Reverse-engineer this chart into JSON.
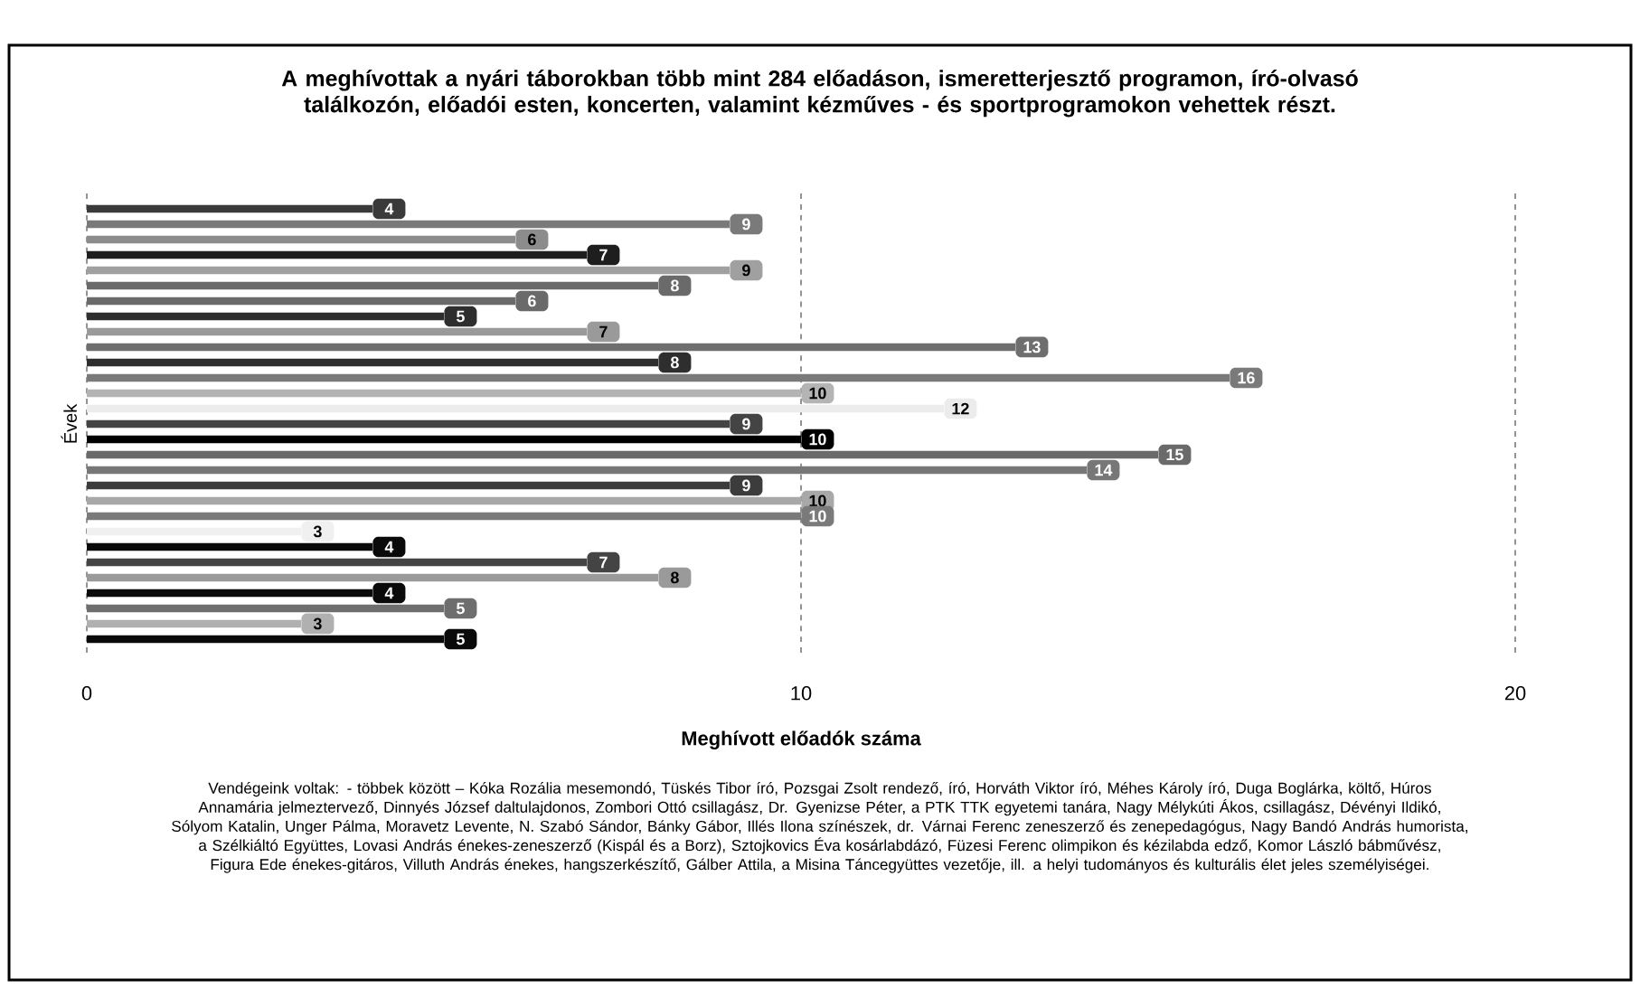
{
  "chart_data": {
    "type": "bar",
    "orientation": "horizontal",
    "title": "A meghívottak a nyári táborokban több mint 284 előadáson, ismeretterjesztő programon, író-olvasó találkozón, előadói esten, koncerten, valamint kézműves - és sportprogramokon vehettek részt.",
    "xlabel": "Meghívott előadók száma",
    "ylabel": "Évek",
    "categories": [
      null,
      null,
      null,
      null,
      null,
      null,
      null,
      null,
      null,
      null,
      null,
      null,
      null,
      null,
      null,
      null,
      null,
      null,
      null,
      null,
      null,
      null,
      null,
      null,
      null,
      null,
      null,
      null,
      null
    ],
    "values": [
      4,
      9,
      6,
      7,
      9,
      8,
      6,
      5,
      7,
      13,
      8,
      16,
      10,
      12,
      9,
      10,
      15,
      14,
      9,
      10,
      10,
      3,
      4,
      7,
      8,
      4,
      5,
      3,
      5
    ],
    "colors": [
      "#3a3a3a",
      "#7a7a7a",
      "#8c8c8c",
      "#1e1e1e",
      "#a0a0a0",
      "#6a6a6a",
      "#6a6a6a",
      "#2e2e2e",
      "#9a9a9a",
      "#6e6e6e",
      "#2e2e2e",
      "#7a7a7a",
      "#b4b4b4",
      "#ececec",
      "#444444",
      "#000000",
      "#6a6a6a",
      "#777777",
      "#3c3c3c",
      "#a8a8a8",
      "#7a7a7a",
      "#f0f0f0",
      "#0a0a0a",
      "#444444",
      "#9a9a9a",
      "#0a0a0a",
      "#6e6e6e",
      "#b0b0b0",
      "#0a0a0a"
    ],
    "data_labels": true,
    "xlim": [
      0,
      20
    ],
    "xticks": [
      0,
      10,
      20
    ],
    "grid": "x",
    "tick_labels": "x",
    "annotations": [
      "Vendégeink voltak: - többek között – Kóka Rozália mesemondó, Tüskés Tibor író, Pozsgai Zsolt rendező, író, Horváth Viktor író, Méhes Károly író, Duga Boglárka, költő, Húros Annamária jelmeztervező, Dinnyés József daltulajdonos, Zombori Ottó csillagász, Dr. Gyenizse Péter, a PTK TTK egyetemi tanára, Nagy Mélykúti Ákos, csillagász, Dévényi Ildikó, Sólyom Katalin, Unger Pálma, Moravetz Levente, N. Szabó Sándor, Bánky Gábor, Illés Ilona színészek, dr. Várnai Ferenc zeneszerző és zenepedagógus, Nagy Bandó András humorista, a Szélkiáltó Együttes, Lovasi András énekes-zeneszerző (Kispál és a Borz), Sztojkovics Éva kosárlabdázó, Füzesi Ferenc olimpikon és kézilabda edző, Komor László bábművész, Figura Ede énekes-gitáros, Villuth András énekes, hangszerkészítő, Gálber Attila, a Misina Táncegyüttes vezetője, ill. a helyi tudományos és kulturális élet jeles személyiségei."
    ]
  }
}
